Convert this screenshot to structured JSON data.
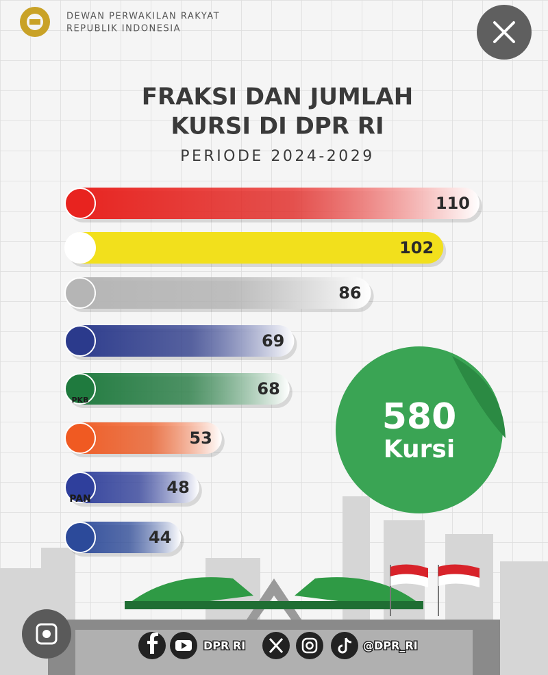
{
  "header": {
    "line1": "DEWAN PERWAKILAN RAKYAT",
    "line2": "REPUBLIK INDONESIA"
  },
  "chart_data": {
    "type": "bar",
    "orientation": "horizontal",
    "title": [
      "FRAKSI DAN JUMLAH",
      "KURSI DI DPR RI"
    ],
    "subtitle": "PERIODE 2024-2029",
    "categories": [
      null,
      null,
      null,
      null,
      "PKB",
      null,
      "PAN",
      null
    ],
    "values": [
      110,
      102,
      86,
      69,
      68,
      53,
      48,
      44
    ],
    "colors": [
      "#e8231f",
      "#f2e01c",
      "#b5b5b5",
      "#2b3a8c",
      "#1f7a3e",
      "#f05a22",
      "#2f3f9c",
      "#2c4a9a"
    ],
    "total": {
      "value": 580,
      "label": "Kursi"
    }
  },
  "footer": {
    "handle1": "DPR RI",
    "handle2": "@DPR_RI"
  }
}
